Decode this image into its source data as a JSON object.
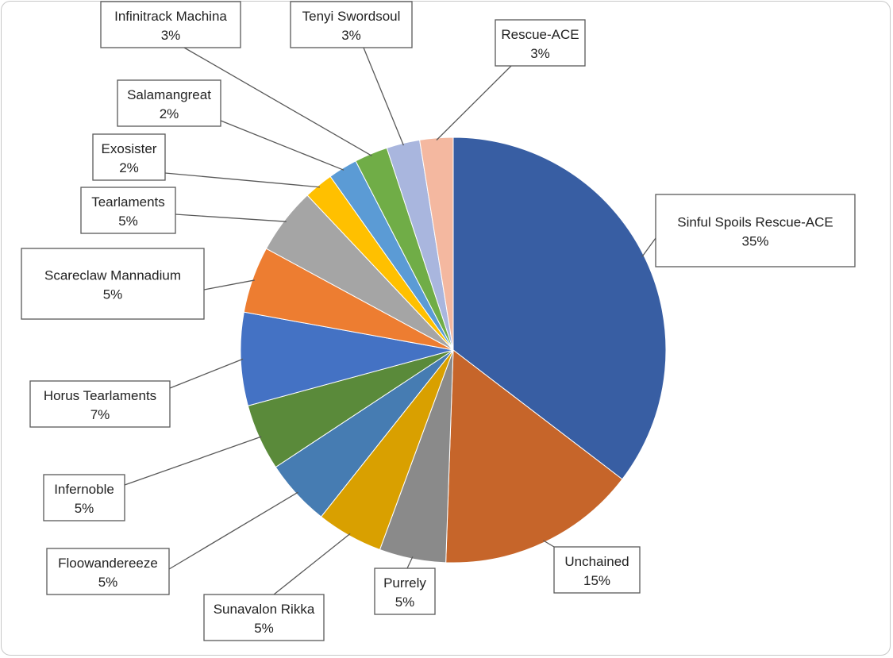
{
  "chart_data": {
    "type": "pie",
    "title": "",
    "start_angle_deg": 0,
    "direction": "clockwise",
    "slices": [
      {
        "label": "Sinful Spoils Rescue-ACE",
        "percent_label": "35%",
        "value": 35,
        "color": "#385EA3"
      },
      {
        "label": "Unchained",
        "percent_label": "15%",
        "value": 15,
        "color": "#C6652A"
      },
      {
        "label": "Purrely",
        "percent_label": "5%",
        "value": 5,
        "color": "#8A8A8A"
      },
      {
        "label": "Sunavalon Rikka",
        "percent_label": "5%",
        "value": 5,
        "color": "#D9A000"
      },
      {
        "label": "Floowandereeze",
        "percent_label": "5%",
        "value": 5,
        "color": "#467CB2"
      },
      {
        "label": "Infernoble",
        "percent_label": "5%",
        "value": 5,
        "color": "#5A8A3A"
      },
      {
        "label": "Horus Tearlaments",
        "percent_label": "7%",
        "value": 7,
        "color": "#4472C4"
      },
      {
        "label": "Scareclaw Mannadium",
        "percent_label": "5%",
        "value": 5,
        "color": "#ED7D31"
      },
      {
        "label": "Tearlaments",
        "percent_label": "5%",
        "value": 5,
        "color": "#A5A5A5"
      },
      {
        "label": "Exosister",
        "percent_label": "2%",
        "value": 2.2,
        "color": "#FFC000"
      },
      {
        "label": "Salamangreat",
        "percent_label": "2%",
        "value": 2.2,
        "color": "#5B9BD5"
      },
      {
        "label": "Infinitrack Machina",
        "percent_label": "3%",
        "value": 2.5,
        "color": "#70AD47"
      },
      {
        "label": "Tenyi Swordsoul",
        "percent_label": "3%",
        "value": 2.5,
        "color": "#A9B6DE"
      },
      {
        "label": "Rescue-ACE",
        "percent_label": "3%",
        "value": 2.5,
        "color": "#F4B8A0"
      }
    ]
  }
}
